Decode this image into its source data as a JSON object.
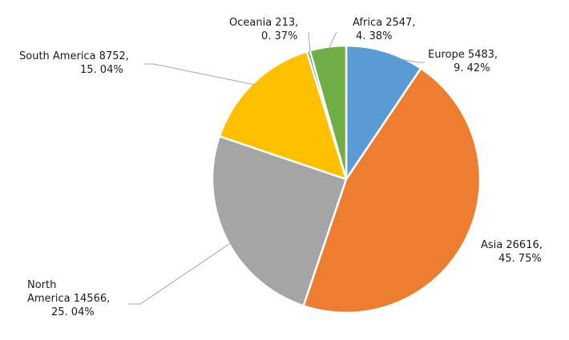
{
  "chart_data": {
    "type": "pie",
    "title": "",
    "start_angle_deg": 0,
    "direction": "clockwise",
    "slices": [
      {
        "name": "Europe",
        "value": 5483,
        "percent": "9. 42%",
        "color": "#5B9BD5",
        "line1": "Europe  5483,",
        "line2": "9. 42%"
      },
      {
        "name": "Asia",
        "value": 26616,
        "percent": "45. 75%",
        "color": "#ED7D31",
        "line1": "Asia  26616,",
        "line2": "45. 75%"
      },
      {
        "name": "North America",
        "value": 14566,
        "percent": "25. 04%",
        "color": "#A5A5A5",
        "line1": "North",
        "line2": "America 14566,",
        "line3": "25. 04%"
      },
      {
        "name": "South America",
        "value": 8752,
        "percent": "15. 04%",
        "color": "#FFC000",
        "line1": "South America  8752,",
        "line2": "15. 04%"
      },
      {
        "name": "Oceania",
        "value": 213,
        "percent": "0. 37%",
        "color": "#4472C4",
        "line1": "Oceania   213,",
        "line2": "0. 37%"
      },
      {
        "name": "Africa",
        "value": 2547,
        "percent": "4. 38%",
        "color": "#70AD47",
        "line1": "Africa  2547,",
        "line2": "4. 38%"
      }
    ]
  }
}
